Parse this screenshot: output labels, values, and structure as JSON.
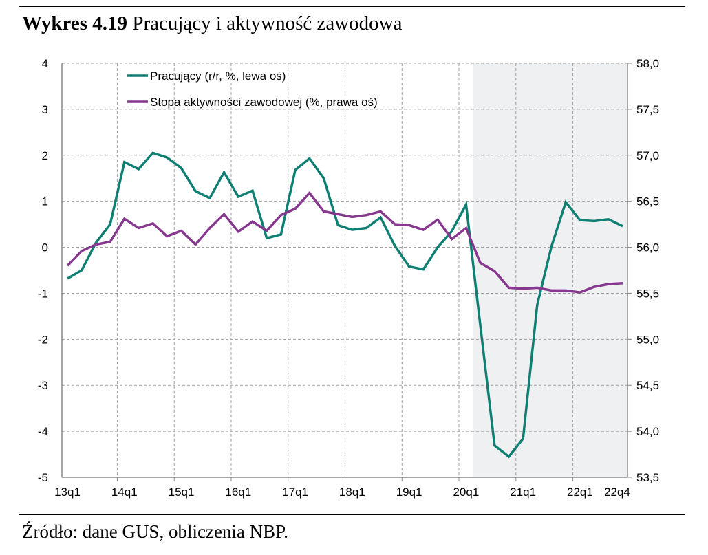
{
  "title_bold": "Wykres 4.19",
  "title_rest": " Pracujący i aktywność zawodowa",
  "source": "Źródło: dane GUS, obliczenia NBP.",
  "chart_data": {
    "type": "line",
    "x": [
      "13q1",
      "13q2",
      "13q3",
      "13q4",
      "14q1",
      "14q2",
      "14q3",
      "14q4",
      "15q1",
      "15q2",
      "15q3",
      "15q4",
      "16q1",
      "16q2",
      "16q3",
      "16q4",
      "17q1",
      "17q2",
      "17q3",
      "17q4",
      "18q1",
      "18q2",
      "18q3",
      "18q4",
      "19q1",
      "19q2",
      "19q3",
      "19q4",
      "20q1",
      "20q2",
      "20q3",
      "20q4",
      "21q1",
      "21q2",
      "21q3",
      "21q4",
      "22q1",
      "22q2",
      "22q3",
      "22q4"
    ],
    "x_tick_labels": [
      "13q1",
      "14q1",
      "15q1",
      "16q1",
      "17q1",
      "18q1",
      "19q1",
      "20q1",
      "21q1",
      "22q1",
      "22q4"
    ],
    "y_left": {
      "range": [
        -5,
        4
      ],
      "ticks": [
        "4",
        "3",
        "2",
        "1",
        "0",
        "-1",
        "-2",
        "-3",
        "-4",
        "-5"
      ]
    },
    "y_right": {
      "range": [
        53.5,
        58.0
      ],
      "ticks": [
        "58,0",
        "57,5",
        "57,0",
        "56,5",
        "56,0",
        "55,5",
        "55,0",
        "54,5",
        "54,0",
        "53,5"
      ]
    },
    "grid": true,
    "legend_placement": "top-left",
    "shaded_region": {
      "from": "20q1",
      "to": "22q4",
      "color": "#eff0f2"
    },
    "series": [
      {
        "name": "Pracujący (r/r, %, lewa oś)",
        "axis": "left",
        "color": "#0e7f72",
        "values": [
          -0.68,
          -0.5,
          0.1,
          0.5,
          1.85,
          1.7,
          2.05,
          1.95,
          1.72,
          1.22,
          1.07,
          1.63,
          1.1,
          1.23,
          0.2,
          0.28,
          1.68,
          1.93,
          1.5,
          0.48,
          0.38,
          0.42,
          0.65,
          0.03,
          -0.42,
          -0.48,
          0.0,
          0.35,
          0.93,
          -1.7,
          -4.31,
          -4.55,
          -4.16,
          -1.25,
          0.02,
          0.98,
          0.59,
          0.57,
          0.61,
          0.46
        ]
      },
      {
        "name": "Stopa aktywności zawodowej (%, prawa oś)",
        "axis": "right",
        "color": "#86378e",
        "values": [
          55.8,
          55.96,
          56.03,
          56.06,
          56.31,
          56.21,
          56.26,
          56.12,
          56.18,
          56.03,
          56.21,
          56.36,
          56.17,
          56.28,
          56.18,
          56.35,
          56.42,
          56.59,
          56.39,
          56.36,
          56.33,
          56.35,
          56.39,
          56.25,
          56.24,
          56.19,
          56.3,
          56.09,
          56.21,
          55.83,
          55.74,
          55.56,
          55.55,
          55.56,
          55.53,
          55.53,
          55.51,
          55.57,
          55.6,
          55.61
        ]
      }
    ]
  }
}
